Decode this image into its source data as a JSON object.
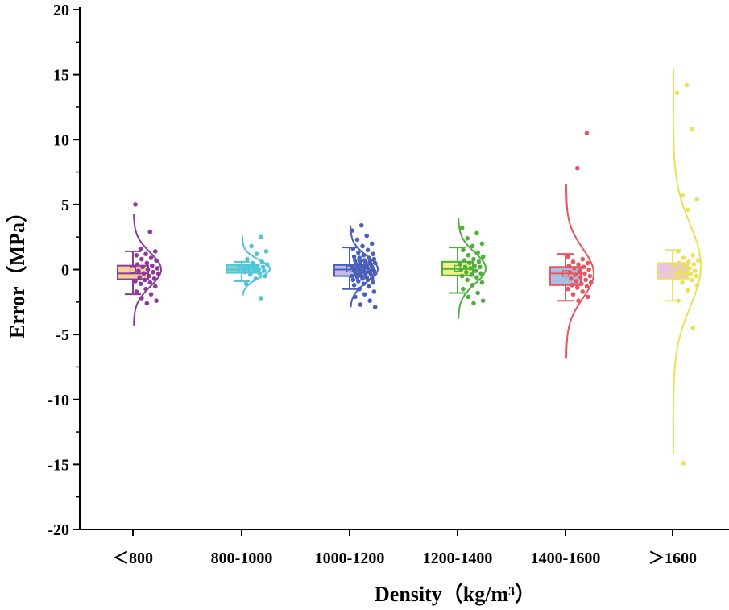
{
  "chart_data": {
    "type": "box-scatter-density",
    "title": "",
    "xlabel": "Density（kg/m³）",
    "ylabel": "Error（MPa）",
    "ylim": [
      -20,
      20
    ],
    "yticks": [
      "-20",
      "-15",
      "-10",
      "-5",
      "0",
      "5",
      "10",
      "15",
      "20"
    ],
    "categories": [
      "＜800",
      "800-1000",
      "1000-1200",
      "1200-1400",
      "1400-1600",
      "＞1600"
    ],
    "series": [
      {
        "name": "＜800",
        "color": "#8e3a9c",
        "box_fill": "#f5cf95",
        "box": {
          "whisker_low": -1.9,
          "q1": -0.75,
          "median": -0.3,
          "mean": 0.0,
          "q3": 0.3,
          "whisker_high": 1.4
        },
        "curve_range": [
          -4.3,
          4.3
        ],
        "curve_sigma": 1.3,
        "points": [
          5.0,
          2.9,
          1.6,
          1.4,
          1.2,
          1.1,
          0.9,
          0.8,
          0.7,
          0.5,
          0.4,
          0.3,
          0.2,
          0.1,
          0.0,
          -0.1,
          -0.2,
          -0.3,
          -0.3,
          -0.5,
          -0.6,
          -0.7,
          -0.8,
          -0.9,
          -1.0,
          -1.1,
          -1.3,
          -1.5,
          -1.7,
          -1.9,
          -2.2,
          -2.4,
          -2.6
        ]
      },
      {
        "name": "800-1000",
        "color": "#4ec6d9",
        "box_fill": "#7fd6cd",
        "box": {
          "whisker_low": -0.9,
          "q1": -0.25,
          "median": 0.0,
          "mean": 0.05,
          "q3": 0.35,
          "whisker_high": 0.6
        },
        "curve_range": [
          -2.0,
          2.6
        ],
        "curve_sigma": 0.7,
        "points": [
          2.5,
          1.8,
          1.4,
          1.2,
          0.8,
          0.6,
          0.5,
          0.4,
          0.3,
          0.3,
          0.2,
          0.2,
          0.1,
          0.0,
          0.0,
          -0.1,
          -0.1,
          -0.2,
          -0.3,
          -0.4,
          -0.5,
          -0.7,
          -1.1,
          -2.2
        ]
      },
      {
        "name": "1000-1200",
        "color": "#4a5fb8",
        "box_fill": "#c3bde3",
        "box": {
          "whisker_low": -1.5,
          "q1": -0.5,
          "median": 0.0,
          "mean": 0.05,
          "q3": 0.35,
          "whisker_high": 1.7
        },
        "curve_range": [
          -2.9,
          3.4
        ],
        "curve_sigma": 1.0,
        "points": [
          3.4,
          3.0,
          2.6,
          2.3,
          2.0,
          1.8,
          1.6,
          1.5,
          1.3,
          1.2,
          1.1,
          1.0,
          0.9,
          0.9,
          0.8,
          0.7,
          0.7,
          0.6,
          0.6,
          0.5,
          0.5,
          0.4,
          0.4,
          0.3,
          0.3,
          0.3,
          0.2,
          0.2,
          0.2,
          0.1,
          0.1,
          0.1,
          0.0,
          0.0,
          0.0,
          -0.1,
          -0.1,
          -0.1,
          -0.2,
          -0.2,
          -0.2,
          -0.3,
          -0.3,
          -0.3,
          -0.4,
          -0.4,
          -0.5,
          -0.5,
          -0.6,
          -0.6,
          -0.7,
          -0.7,
          -0.8,
          -0.8,
          -0.9,
          -1.0,
          -1.1,
          -1.2,
          -1.3,
          -1.5,
          -1.7,
          -1.9,
          -2.1,
          -2.4,
          -2.7,
          -2.9
        ]
      },
      {
        "name": "1200-1400",
        "color": "#4fae3c",
        "box_fill": "#eef28d",
        "box": {
          "whisker_low": -1.8,
          "q1": -0.45,
          "median": 0.05,
          "mean": 0.1,
          "q3": 0.6,
          "whisker_high": 1.7
        },
        "curve_range": [
          -3.8,
          4.0
        ],
        "curve_sigma": 1.2,
        "points": [
          3.2,
          2.8,
          2.4,
          2.0,
          1.8,
          1.5,
          1.3,
          1.1,
          1.0,
          0.8,
          0.7,
          0.6,
          0.5,
          0.4,
          0.3,
          0.2,
          0.2,
          0.1,
          0.0,
          -0.1,
          -0.2,
          -0.3,
          -0.4,
          -0.5,
          -0.6,
          -0.8,
          -1.0,
          -1.2,
          -1.5,
          -1.8,
          -2.1,
          -2.4,
          -2.6
        ]
      },
      {
        "name": "1400-1600",
        "color": "#e8555e",
        "box_fill": "#a8c0e6",
        "box": {
          "whisker_low": -2.4,
          "q1": -1.2,
          "median": -0.3,
          "mean": -0.3,
          "q3": 0.2,
          "whisker_high": 1.2
        },
        "curve_range": [
          -6.8,
          6.6
        ],
        "curve_sigma": 1.9,
        "points": [
          10.5,
          7.8,
          1.0,
          0.8,
          0.6,
          0.5,
          0.4,
          0.3,
          0.2,
          0.1,
          0.0,
          -0.1,
          -0.2,
          -0.3,
          -0.4,
          -0.5,
          -0.6,
          -0.7,
          -0.8,
          -0.9,
          -1.0,
          -1.1,
          -1.2,
          -1.3,
          -1.4,
          -1.5,
          -1.7,
          -1.9,
          -2.1,
          -2.4
        ]
      },
      {
        "name": "＞1600",
        "color": "#ece05a",
        "box_fill": "#eac4ea",
        "box": {
          "whisker_low": -2.4,
          "q1": -0.7,
          "median": -0.2,
          "mean": 0.3,
          "q3": 0.5,
          "whisker_high": 1.5
        },
        "curve_range": [
          -14.2,
          15.5
        ],
        "curve_sigma": 3.2,
        "points": [
          14.2,
          13.6,
          10.8,
          5.7,
          5.4,
          4.6,
          1.4,
          1.1,
          0.9,
          0.7,
          0.6,
          0.5,
          0.4,
          0.3,
          0.2,
          0.1,
          0.0,
          -0.1,
          -0.2,
          -0.3,
          -0.3,
          -0.4,
          -0.5,
          -0.6,
          -0.7,
          -0.8,
          -1.0,
          -1.2,
          -1.6,
          -2.4,
          -4.5,
          -14.9
        ]
      }
    ]
  }
}
